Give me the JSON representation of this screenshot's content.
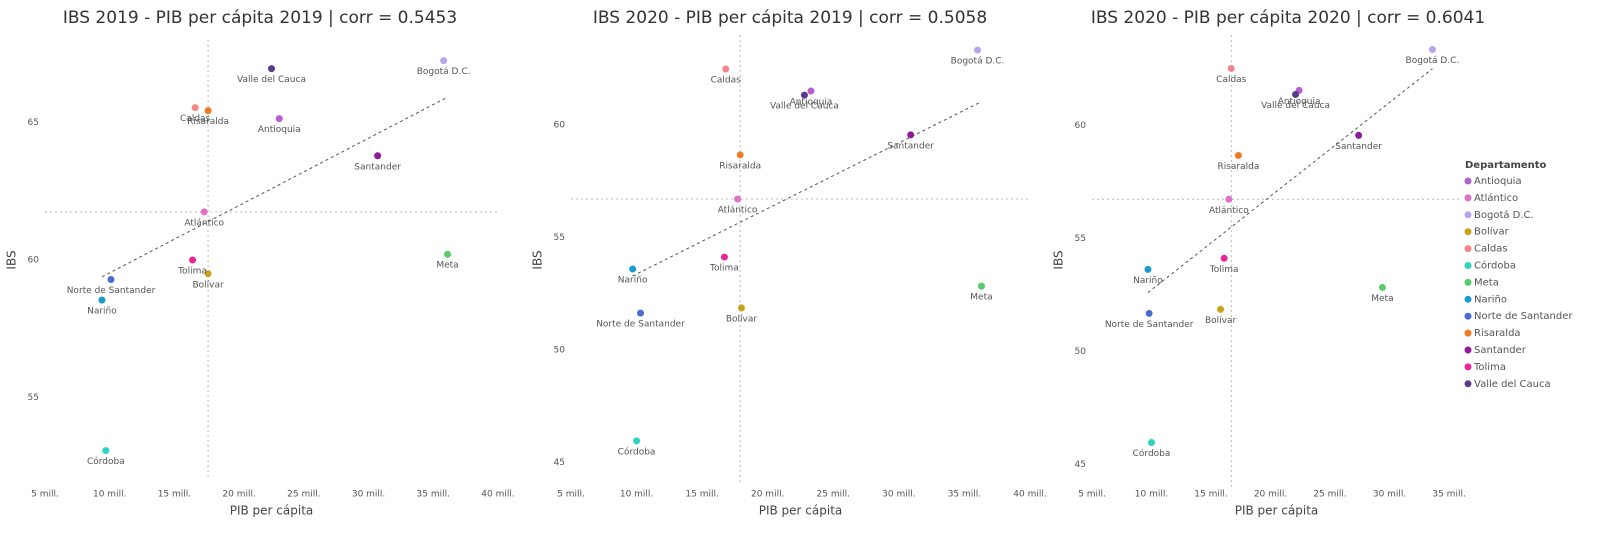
{
  "chart_data": [
    {
      "type": "scatter",
      "title": "IBS 2019 - PIB per cápita 2019 | corr = 0.5453",
      "x_label": "PIB per cápita",
      "y_label": "IBS",
      "labels": [
        "Antioquia",
        "Atlántico",
        "Bogotá D.C.",
        "Bolívar",
        "Caldas",
        "Córdoba",
        "Meta",
        "Nariño",
        "Norte de Santander",
        "Risaralda",
        "Santander",
        "Tolima",
        "Valle del Cauca"
      ],
      "x": [
        23.1,
        17.3,
        35.8,
        17.6,
        16.6,
        9.7,
        36.1,
        9.4,
        10.1,
        17.6,
        30.7,
        16.4,
        22.5
      ],
      "values": [
        65.14,
        61.75,
        67.25,
        59.5,
        65.54,
        53.07,
        60.21,
        58.54,
        59.29,
        65.43,
        63.79,
        60.0,
        66.96
      ],
      "xlim": [
        5,
        40
      ],
      "ylim": [
        52,
        68
      ],
      "xticks": [
        {
          "value": 5,
          "label": "5 mill."
        },
        {
          "value": 10,
          "label": "10 mill."
        },
        {
          "value": 15,
          "label": "15 mill."
        },
        {
          "value": 20,
          "label": "20 mill."
        },
        {
          "value": 25,
          "label": "25 mill."
        },
        {
          "value": 30,
          "label": "30 mill."
        },
        {
          "value": 35,
          "label": "35 mill."
        },
        {
          "value": 40,
          "label": "40 mill."
        }
      ],
      "yticks": [
        55,
        60,
        65
      ],
      "trend_line": true,
      "reference_lines": "median"
    },
    {
      "type": "scatter",
      "title": "IBS 2020 - PIB per cápita 2019 | corr = 0.5058",
      "x_label": "PIB per cápita",
      "y_label": "IBS",
      "labels": [
        "Antioquia",
        "Atlántico",
        "Bogotá D.C.",
        "Bolívar",
        "Caldas",
        "Córdoba",
        "Meta",
        "Nariño",
        "Norte de Santander",
        "Risaralda",
        "Santander",
        "Tolima",
        "Valle del Cauca"
      ],
      "x": [
        23.3,
        17.7,
        36.0,
        18.0,
        16.8,
        10.0,
        36.3,
        9.7,
        10.3,
        17.9,
        30.9,
        16.7,
        22.8
      ],
      "values": [
        61.51,
        56.71,
        63.33,
        51.87,
        62.49,
        45.96,
        52.84,
        53.6,
        51.64,
        58.67,
        59.56,
        54.13,
        61.33
      ],
      "xlim": [
        5,
        40
      ],
      "ylim": [
        44,
        64
      ],
      "xticks": [
        {
          "value": 5,
          "label": "5 mill."
        },
        {
          "value": 10,
          "label": "10 mill."
        },
        {
          "value": 15,
          "label": "15 mill."
        },
        {
          "value": 20,
          "label": "20 mill."
        },
        {
          "value": 25,
          "label": "25 mill."
        },
        {
          "value": 30,
          "label": "30 mill."
        },
        {
          "value": 35,
          "label": "35 mill."
        },
        {
          "value": 40,
          "label": "40 mill."
        }
      ],
      "yticks": [
        45,
        50,
        55,
        60
      ],
      "trend_line": true,
      "reference_lines": "median"
    },
    {
      "type": "scatter",
      "title": "IBS 2020 - PIB per cápita 2020 | corr = 0.6041",
      "x_label": "PIB per cápita",
      "y_label": "IBS",
      "labels": [
        "Antioquia",
        "Atlántico",
        "Bogotá D.C.",
        "Bolívar",
        "Caldas",
        "Córdoba",
        "Meta",
        "Nariño",
        "Norte de Santander",
        "Risaralda",
        "Santander",
        "Tolima",
        "Valle del Cauca"
      ],
      "x": [
        22.4,
        16.5,
        33.6,
        15.8,
        16.7,
        10.0,
        29.4,
        9.7,
        9.8,
        17.3,
        27.4,
        16.1,
        22.1
      ],
      "values": [
        61.55,
        56.73,
        63.36,
        51.86,
        62.52,
        45.97,
        52.83,
        53.63,
        51.68,
        58.67,
        59.56,
        54.12,
        61.37
      ],
      "xlim": [
        5,
        36
      ],
      "ylim": [
        44,
        64
      ],
      "xticks": [
        {
          "value": 5,
          "label": "5 mill."
        },
        {
          "value": 10,
          "label": "10 mill."
        },
        {
          "value": 15,
          "label": "15 mill."
        },
        {
          "value": 20,
          "label": "20 mill."
        },
        {
          "value": 25,
          "label": "25 mill."
        },
        {
          "value": 30,
          "label": "30 mill."
        },
        {
          "value": 35,
          "label": "35 mill."
        }
      ],
      "yticks": [
        45,
        50,
        55,
        60
      ],
      "trend_line": true,
      "reference_lines": "median"
    }
  ],
  "legend": {
    "title": "Departamento",
    "items": [
      {
        "name": "Antioquia",
        "color": "#b55fd0"
      },
      {
        "name": "Atlántico",
        "color": "#e070c8"
      },
      {
        "name": "Bogotá D.C.",
        "color": "#b7a3f0"
      },
      {
        "name": "Bolívar",
        "color": "#c9a21a"
      },
      {
        "name": "Caldas",
        "color": "#f4868a"
      },
      {
        "name": "Córdoba",
        "color": "#2dd4bf"
      },
      {
        "name": "Meta",
        "color": "#5acb6b"
      },
      {
        "name": "Nariño",
        "color": "#1a9bcd"
      },
      {
        "name": "Norte de Santander",
        "color": "#4a6cd0"
      },
      {
        "name": "Risaralda",
        "color": "#f07a22"
      },
      {
        "name": "Santander",
        "color": "#8e1a9b"
      },
      {
        "name": "Tolima",
        "color": "#e8259a"
      },
      {
        "name": "Valle del Cauca",
        "color": "#5b3c8c"
      }
    ]
  }
}
